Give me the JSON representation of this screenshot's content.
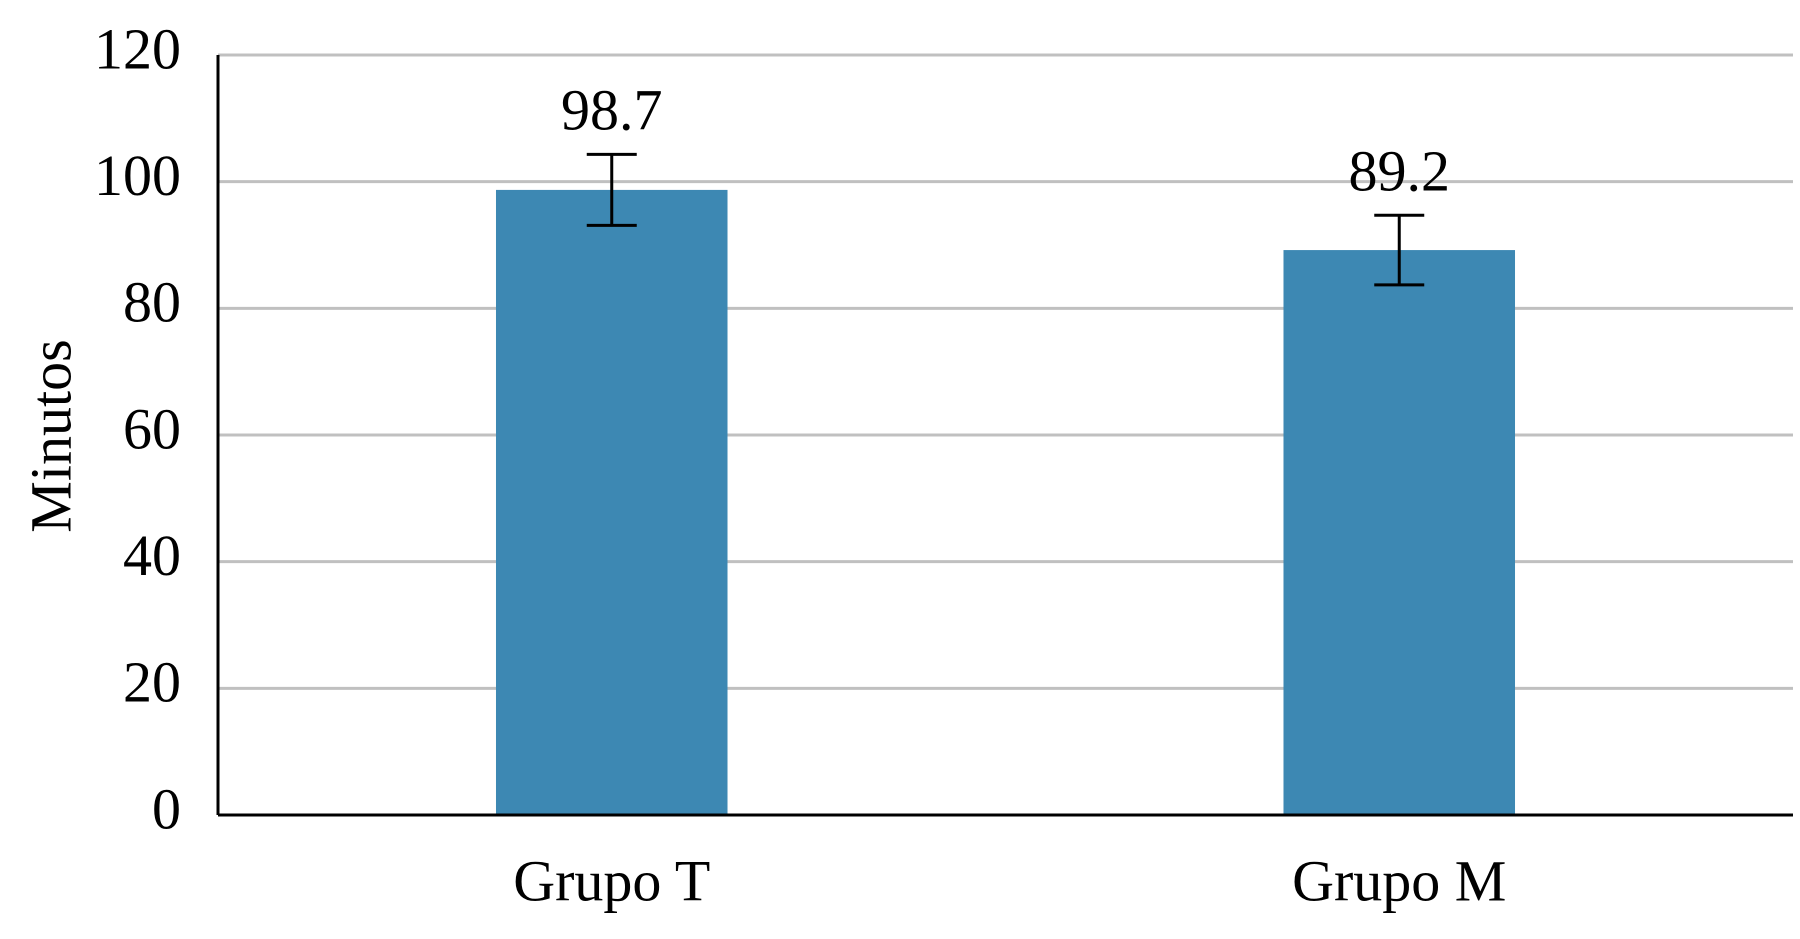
{
  "chart_data": {
    "type": "bar",
    "y_label": "Minutos",
    "categories": [
      "Grupo T",
      "Grupo M"
    ],
    "values": [
      98.7,
      89.2
    ],
    "errors": [
      5.6,
      5.5
    ],
    "color": "#3d88b3",
    "ylim": [
      0,
      120
    ],
    "yticks": [
      0,
      20,
      40,
      60,
      80,
      100,
      120
    ],
    "grid": true
  }
}
